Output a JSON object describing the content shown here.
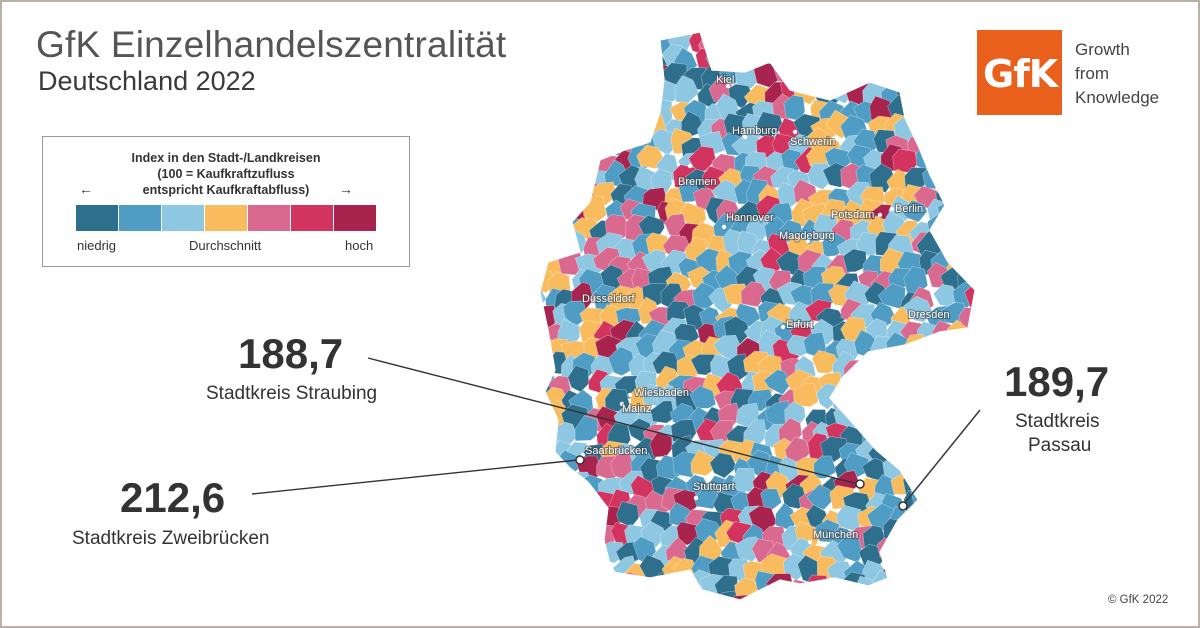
{
  "header": {
    "title": "GfK Einzelhandelszentralität",
    "subtitle": "Deutschland 2022"
  },
  "legend": {
    "title_line1": "Index in den Stadt-/Landkreisen",
    "title_line2": "(100 = Kaufkraftzufluss",
    "title_line3": "entspricht Kaufkraftabfluss)",
    "arrow_left": "←",
    "arrow_right": "→",
    "label_low": "niedrig",
    "label_mid": "Durchschnitt",
    "label_high": "hoch",
    "colors": [
      "#2e6f8e",
      "#4f9cc4",
      "#8ec7e2",
      "#f8bc5e",
      "#d9698f",
      "#d3345f",
      "#a8234d"
    ]
  },
  "logo": {
    "text": "GfK",
    "color": "#e8601c",
    "tagline": [
      "Growth",
      "from",
      "Knowledge"
    ]
  },
  "callouts": {
    "straubing": {
      "value": "188,7",
      "label": "Stadtkreis Straubing"
    },
    "zweibruecken": {
      "value": "212,6",
      "label": "Stadtkreis Zweibrücken"
    },
    "passau": {
      "value": "189,7",
      "label_line1": "Stadtkreis",
      "label_line2": "Passau"
    }
  },
  "cities": [
    {
      "name": "Kiel"
    },
    {
      "name": "Hamburg"
    },
    {
      "name": "Schwerin"
    },
    {
      "name": "Bremen"
    },
    {
      "name": "Hannover"
    },
    {
      "name": "Potsdam"
    },
    {
      "name": "Berlin"
    },
    {
      "name": "Magdeburg"
    },
    {
      "name": "Düsseldorf"
    },
    {
      "name": "Erfurt"
    },
    {
      "name": "Dresden"
    },
    {
      "name": "Wiesbaden"
    },
    {
      "name": "Mainz"
    },
    {
      "name": "Saarbrücken"
    },
    {
      "name": "Stuttgart"
    },
    {
      "name": "München"
    }
  ],
  "copyright": "© GfK 2022"
}
